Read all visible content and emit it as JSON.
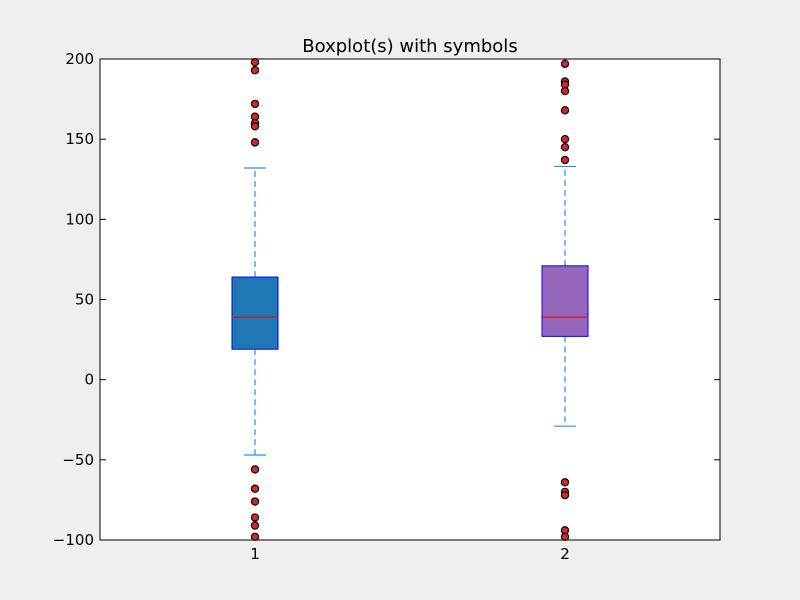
{
  "chart_data": {
    "type": "boxplot",
    "title": "Boxplot(s) with symbols",
    "xlabel": "",
    "ylabel": "",
    "ylim": [
      -100,
      200
    ],
    "yticks": [
      -100,
      -50,
      0,
      50,
      100,
      150,
      200
    ],
    "ytick_labels": [
      "−100",
      "−50",
      "0",
      "50",
      "100",
      "150",
      "200"
    ],
    "categories": [
      "1",
      "2"
    ],
    "grid": false,
    "boxes": [
      {
        "label": "1",
        "q1": 19,
        "median": 39,
        "q3": 64,
        "whisker_low": -47,
        "whisker_high": 132,
        "fill": "#1f77b4",
        "fliers": [
          198,
          193,
          172,
          164,
          160,
          158,
          148,
          -56,
          -68,
          -76,
          -86,
          -91,
          -98
        ]
      },
      {
        "label": "2",
        "q1": 27,
        "median": 39,
        "q3": 71,
        "whisker_low": -29,
        "whisker_high": 133,
        "fill": "#9467bd",
        "fliers": [
          197,
          186,
          184,
          180,
          168,
          150,
          145,
          137,
          -64,
          -70,
          -72,
          -94,
          -98
        ]
      }
    ],
    "colors": {
      "box_edge": "#0000ff",
      "median": "#ff0000",
      "whisker": "#1e90ff",
      "flier_fill": "#d62728",
      "flier_edge": "#000000",
      "axes_bg": "#ffffff",
      "figure_bg": "#efefef"
    }
  }
}
